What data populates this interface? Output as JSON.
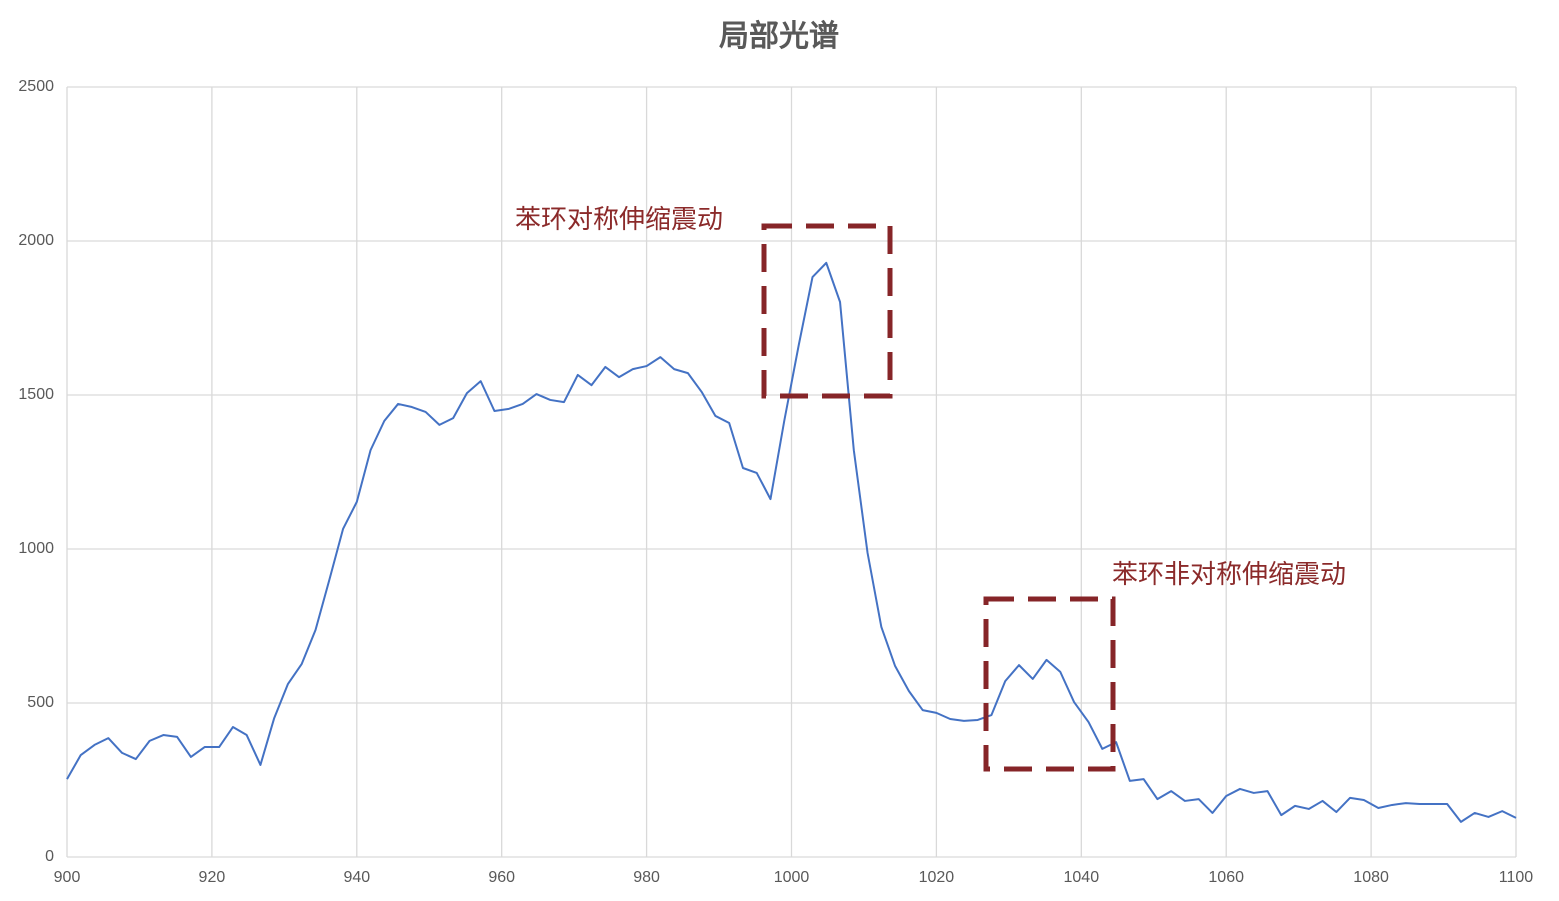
{
  "chart_data": {
    "type": "line",
    "title": "局部光谱",
    "x": [
      900.0,
      901.9,
      903.8,
      905.7,
      907.6,
      909.5,
      911.4,
      913.3,
      915.2,
      917.1,
      919.0,
      921.0,
      922.9,
      924.8,
      926.7,
      928.6,
      930.5,
      932.4,
      934.3,
      936.2,
      938.1,
      940.0,
      941.9,
      943.8,
      945.7,
      947.6,
      949.5,
      951.4,
      953.3,
      955.2,
      957.1,
      959.0,
      961.0,
      962.9,
      964.8,
      966.7,
      968.6,
      970.5,
      972.4,
      974.3,
      976.2,
      978.1,
      980.0,
      981.9,
      983.8,
      985.7,
      987.6,
      989.5,
      991.4,
      993.3,
      995.2,
      997.1,
      999.0,
      1001.0,
      1002.9,
      1004.8,
      1006.7,
      1008.6,
      1010.5,
      1012.4,
      1014.3,
      1016.2,
      1018.1,
      1020.0,
      1021.9,
      1023.8,
      1025.7,
      1027.6,
      1029.5,
      1031.4,
      1033.3,
      1035.2,
      1037.1,
      1039.0,
      1041.0,
      1042.9,
      1044.8,
      1046.7,
      1048.6,
      1050.5,
      1052.4,
      1054.3,
      1056.2,
      1058.1,
      1060.0,
      1061.9,
      1063.8,
      1065.7,
      1067.6,
      1069.5,
      1071.4,
      1073.3,
      1075.2,
      1077.1,
      1079.0,
      1081.0,
      1082.9,
      1084.8,
      1086.7,
      1088.6,
      1090.5,
      1092.4,
      1094.3,
      1096.2,
      1098.1,
      1100.0
    ],
    "series": [
      {
        "color": "#4472c4",
        "values": [
          253,
          331,
          364,
          386,
          338,
          318,
          377,
          396,
          390,
          325,
          357,
          357,
          422,
          396,
          299,
          451,
          562,
          627,
          737,
          899,
          1065,
          1153,
          1321,
          1416,
          1471,
          1461,
          1445,
          1403,
          1425,
          1506,
          1545,
          1448,
          1455,
          1471,
          1503,
          1484,
          1477,
          1565,
          1532,
          1591,
          1558,
          1584,
          1594,
          1623,
          1584,
          1571,
          1510,
          1432,
          1409,
          1263,
          1247,
          1162,
          1416,
          1662,
          1883,
          1929,
          1802,
          1321,
          987,
          747,
          620,
          539,
          477,
          468,
          448,
          442,
          445,
          461,
          571,
          623,
          578,
          640,
          601,
          503,
          438,
          351,
          373,
          247,
          253,
          188,
          214,
          182,
          188,
          143,
          198,
          221,
          208,
          214,
          136,
          166,
          156,
          182,
          146,
          192,
          185,
          159,
          169,
          175,
          172,
          172,
          172,
          114,
          143,
          130,
          149,
          127
        ]
      }
    ],
    "xlim": [
      900,
      1100
    ],
    "xticks": [
      900,
      920,
      940,
      960,
      980,
      1000,
      1020,
      1040,
      1060,
      1080,
      1100
    ],
    "ylim": [
      0,
      2500
    ],
    "yticks": [
      0,
      500,
      1000,
      1500,
      2000,
      2500
    ],
    "grid": true,
    "annotations": [
      {
        "text": "苯环对称伸缩震动"
      },
      {
        "text": "苯环非对称伸缩震动"
      }
    ]
  }
}
